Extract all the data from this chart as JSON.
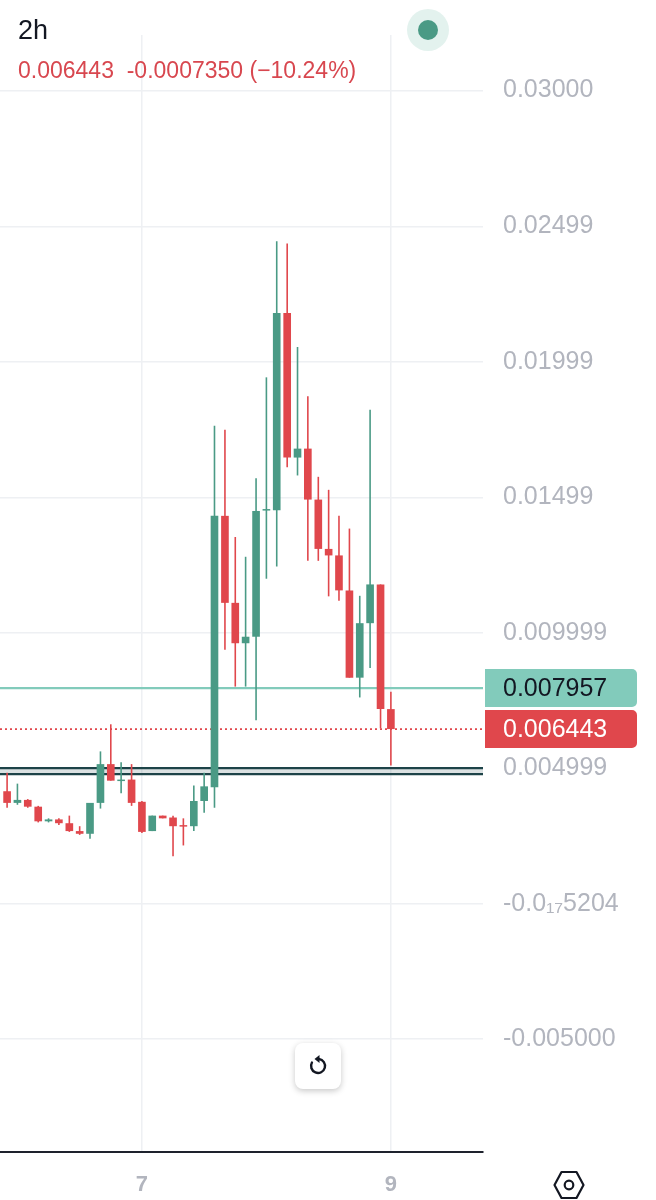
{
  "chart_data": {
    "type": "candlestick",
    "title": "2h",
    "subtitle": "0.006443  -0.0007350 (−10.24%)",
    "x": [
      5.917,
      6,
      6.083,
      6.167,
      6.25,
      6.333,
      6.417,
      6.5,
      6.583,
      6.667,
      6.75,
      6.833,
      6.917,
      7,
      7.083,
      7.167,
      7.25,
      7.333,
      7.417,
      7.5,
      7.583,
      7.667,
      7.75,
      7.833,
      7.917,
      8,
      8.083,
      8.167,
      8.25,
      8.333,
      8.417,
      8.5,
      8.583,
      8.667,
      8.75,
      8.833,
      8.917,
      9
    ],
    "ohlc": [
      [
        0.00415,
        0.00483,
        0.00354,
        0.00372
      ],
      [
        0.00372,
        0.00443,
        0.00365,
        0.00383
      ],
      [
        0.00383,
        0.00386,
        0.00354,
        0.00358
      ],
      [
        0.00358,
        0.00361,
        0.003,
        0.00304
      ],
      [
        0.00304,
        0.00315,
        0.003,
        0.00311
      ],
      [
        0.00311,
        0.00315,
        0.0029,
        0.00297
      ],
      [
        0.00297,
        0.00325,
        0.00265,
        0.00268
      ],
      [
        0.00268,
        0.00286,
        0.00254,
        0.00258
      ],
      [
        0.00258,
        0.00372,
        0.0024,
        0.00372
      ],
      [
        0.00372,
        0.00562,
        0.00351,
        0.00515
      ],
      [
        0.00515,
        0.00662,
        0.00454,
        0.00454
      ],
      [
        0.00454,
        0.00522,
        0.00408,
        0.00458
      ],
      [
        0.00458,
        0.00515,
        0.00361,
        0.00372
      ],
      [
        0.00376,
        0.00379,
        0.00261,
        0.00265
      ],
      [
        0.00268,
        0.00325,
        0.00268,
        0.00325
      ],
      [
        0.00325,
        0.00325,
        0.00315,
        0.00315
      ],
      [
        0.00318,
        0.00325,
        0.00175,
        0.00286
      ],
      [
        0.0029,
        0.00315,
        0.00215,
        0.00286
      ],
      [
        0.00286,
        0.00436,
        0.00268,
        0.00379
      ],
      [
        0.00379,
        0.00483,
        0.00336,
        0.00433
      ],
      [
        0.0043,
        0.01763,
        0.00354,
        0.01431
      ],
      [
        0.01431,
        0.01749,
        0.00937,
        0.0111
      ],
      [
        0.0111,
        0.01353,
        0.00801,
        0.00961
      ],
      [
        0.00961,
        0.0128,
        0.00801,
        0.00985
      ],
      [
        0.00985,
        0.0157,
        0.00677,
        0.01449
      ],
      [
        0.01452,
        0.01942,
        0.01199,
        0.01456
      ],
      [
        0.01452,
        0.02444,
        0.01244,
        0.02179
      ],
      [
        0.02179,
        0.02436,
        0.0161,
        0.01646
      ],
      [
        0.01646,
        0.02054,
        0.0158,
        0.01679
      ],
      [
        0.01679,
        0.01872,
        0.01265,
        0.01491
      ],
      [
        0.01491,
        0.01575,
        0.01265,
        0.01309
      ],
      [
        0.01309,
        0.01527,
        0.01134,
        0.01285
      ],
      [
        0.01285,
        0.01431,
        0.01118,
        0.01156
      ],
      [
        0.01156,
        0.01384,
        0.00834,
        0.00834
      ],
      [
        0.00834,
        0.01136,
        0.00761,
        0.01035
      ],
      [
        0.01035,
        0.01822,
        0.0087,
        0.01178
      ],
      [
        0.01178,
        0.01178,
        0.00647,
        0.00718
      ],
      [
        0.00718,
        0.00782,
        0.0051,
        0.006443
      ]
    ],
    "colors": [
      "#e0474c",
      "#4a9a85",
      "#e0474c",
      "#e0474c",
      "#4a9a85",
      "#e0474c",
      "#e0474c",
      "#e0474c",
      "#4a9a85",
      "#4a9a85",
      "#e0474c",
      "#4a9a85",
      "#e0474c",
      "#e0474c",
      "#4a9a85",
      "#e0474c",
      "#e0474c",
      "#e0474c",
      "#4a9a85",
      "#4a9a85",
      "#4a9a85",
      "#e0474c",
      "#e0474c",
      "#4a9a85",
      "#4a9a85",
      "#4a9a85",
      "#4a9a85",
      "#e0474c",
      "#4a9a85",
      "#e0474c",
      "#e0474c",
      "#e0474c",
      "#e0474c",
      "#e0474c",
      "#4a9a85",
      "#4a9a85",
      "#e0474c",
      "#e0474c"
    ],
    "xlim": [
      5.86,
      9.74
    ],
    "xticks": [
      7,
      9
    ],
    "ylim": [
      -0.00916,
      0.03205
    ],
    "yticks": [
      {
        "value": -0.005,
        "label": "-0.005000"
      },
      {
        "value": -5.204e-18,
        "label": "-0.0₁₇5204"
      },
      0.004999,
      0.009999,
      0.01499,
      0.01999,
      0.02499,
      {
        "value": 0.03,
        "label": "0.03000"
      }
    ],
    "grid": true,
    "ref_lines": [
      {
        "axis": "y",
        "value": 0.007957,
        "label": "0.007957",
        "color": "#82cbbb",
        "line_style": "solid"
      },
      {
        "axis": "y",
        "value": 0.006443,
        "label": "0.006443",
        "color": "#e0474c",
        "line_style": "dotted"
      },
      {
        "axis": "y",
        "value": 0.005,
        "color": "#1d4348",
        "line_style": "solid"
      },
      {
        "axis": "y",
        "value": 0.00478,
        "color": "#1d4348",
        "line_style": "solid"
      }
    ],
    "bands": [
      {
        "axis": "y",
        "from": 0.00478,
        "to": 0.005,
        "color": "#1d4348"
      }
    ]
  }
}
